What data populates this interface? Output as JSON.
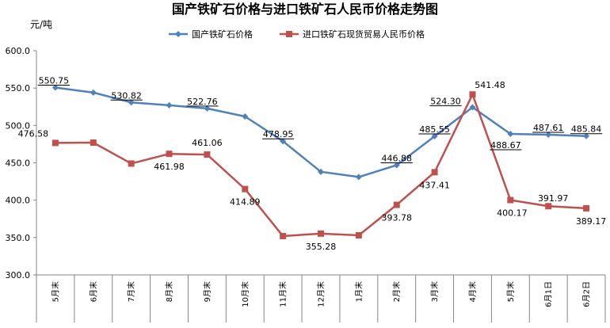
{
  "chart_data": {
    "type": "line",
    "title": "国产铁矿石价格与进口铁矿石人民币价格走势图",
    "ylabel": "元/吨",
    "xlabel": "",
    "ylim": [
      300,
      600
    ],
    "yticks": [
      "300.0",
      "350.0",
      "400.0",
      "450.0",
      "500.0",
      "550.0",
      "600.0"
    ],
    "grid": false,
    "legend": "top-right",
    "categories": [
      "5月末",
      "6月末",
      "7月末",
      "8月末",
      "9月末",
      "10月末",
      "11月末",
      "12月末",
      "1月末",
      "2月末",
      "3月末",
      "4月末",
      "5月末",
      "6月1日",
      "6月2日"
    ],
    "series": [
      {
        "name": "国产铁矿石价格",
        "color": "#4f81bd",
        "marker": "diamond",
        "values": [
          550.75,
          544,
          530.82,
          527,
          522.76,
          512,
          478.95,
          438,
          431,
          446.88,
          485.55,
          524.3,
          488.67,
          487.61,
          485.84
        ],
        "labels": [
          "550.75",
          "",
          "530.82",
          "",
          "522.76",
          "",
          "478.95",
          "",
          "",
          "446.88",
          "485.55",
          "524.30",
          "488.67",
          "487.61",
          "485.84"
        ]
      },
      {
        "name": "进口铁矿石现货贸易人民币价格",
        "color": "#c0504d",
        "marker": "square",
        "values": [
          476.58,
          477,
          449,
          461.98,
          461.06,
          414.89,
          352,
          355.28,
          353,
          393.78,
          437.41,
          541.48,
          400.17,
          391.97,
          389.17
        ],
        "labels": [
          "476.58",
          "",
          "",
          "461.98",
          "461.06",
          "414.89",
          "",
          "355.28",
          "",
          "393.78",
          "437.41",
          "541.48",
          "400.17",
          "391.97",
          "389.17"
        ]
      }
    ]
  }
}
